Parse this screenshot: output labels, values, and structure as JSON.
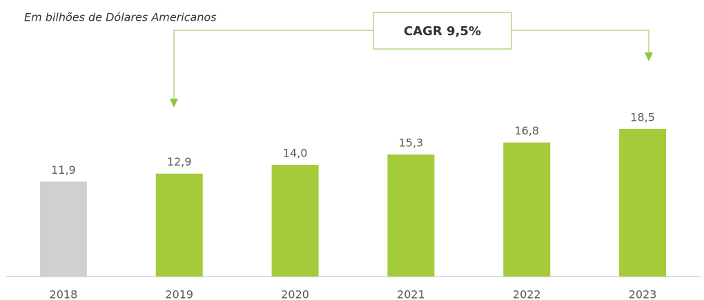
{
  "chart_data": {
    "type": "bar",
    "subtitle": "Em bilhões de Dólares Americanos",
    "annotation": "CAGR 9,5%",
    "categories": [
      "2018",
      "2019",
      "2020",
      "2021",
      "2022",
      "2023"
    ],
    "values": [
      11.9,
      12.9,
      14.0,
      15.3,
      16.8,
      18.5
    ],
    "value_labels": [
      "11,9",
      "12,9",
      "14,0",
      "15,3",
      "16,8",
      "18,5"
    ],
    "colors": [
      "#d0d0d0",
      "#a4cc3a",
      "#a4cc3a",
      "#a4cc3a",
      "#a4cc3a",
      "#a4cc3a"
    ]
  }
}
